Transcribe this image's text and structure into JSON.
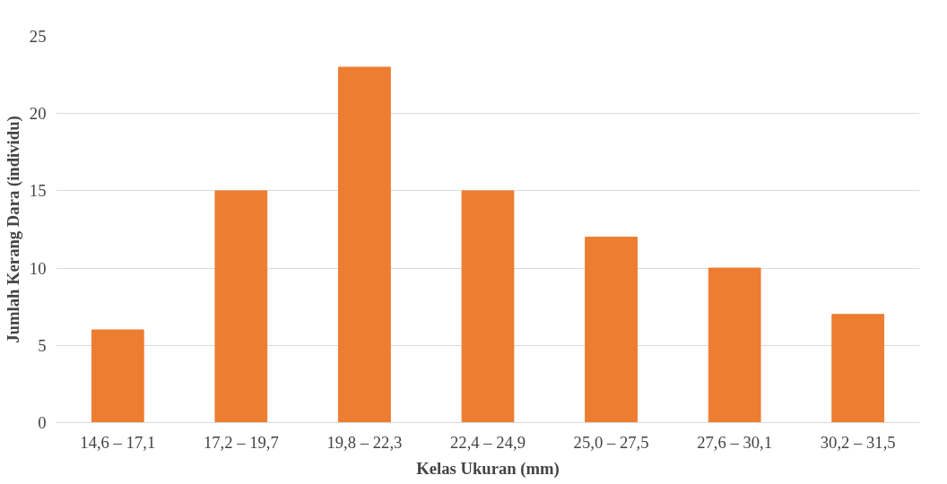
{
  "chart_data": {
    "type": "bar",
    "xlabel": "Kelas Ukuran (mm)",
    "ylabel": "Jumlah Kerang Dara (individu)",
    "categories": [
      "14,6 – 17,1",
      "17,2 – 19,7",
      "19,8 – 22,3",
      "22,4 – 24,9",
      "25,0 – 27,5",
      "27,6 – 30,1",
      "30,2 – 31,5"
    ],
    "values": [
      6,
      15,
      23,
      15,
      12,
      10,
      7
    ],
    "color": "#ed7d31",
    "ylim": [
      0,
      25
    ],
    "yticks": [
      0,
      5,
      10,
      15,
      20,
      25
    ],
    "grid": "y"
  }
}
